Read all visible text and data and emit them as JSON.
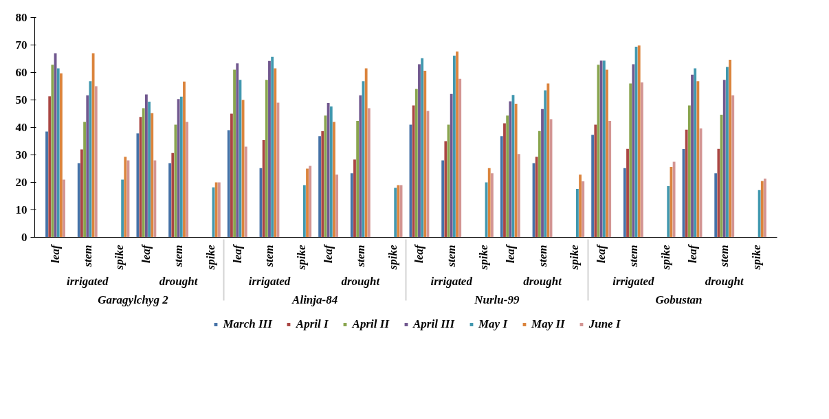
{
  "chart_data": {
    "type": "bar",
    "categories": [
      [
        "Garagylchyg 2",
        "irrigated",
        "leaf"
      ],
      [
        null,
        null,
        "stem"
      ],
      [
        null,
        null,
        "spike"
      ],
      [
        null,
        "drought",
        "leaf"
      ],
      [
        null,
        null,
        "stem"
      ],
      [
        null,
        null,
        "spike"
      ],
      [
        "Alinja-84",
        "irrigated",
        "leaf"
      ],
      [
        null,
        null,
        "stem"
      ],
      [
        null,
        null,
        "spike"
      ],
      [
        null,
        "drought",
        "leaf"
      ],
      [
        null,
        null,
        "stem"
      ],
      [
        null,
        null,
        "spike"
      ],
      [
        "Nurlu-99",
        "irrigated",
        "leaf"
      ],
      [
        null,
        null,
        "stem"
      ],
      [
        null,
        null,
        "spike"
      ],
      [
        null,
        "drought",
        "leaf"
      ],
      [
        null,
        null,
        "stem"
      ],
      [
        null,
        null,
        "spike"
      ],
      [
        "Gobustan",
        "irrigated",
        "leaf"
      ],
      [
        null,
        null,
        "stem"
      ],
      [
        null,
        null,
        "spike"
      ],
      [
        null,
        "drought",
        "leaf"
      ],
      [
        null,
        null,
        "stem"
      ],
      [
        null,
        null,
        "spike"
      ]
    ],
    "series": [
      {
        "name": "March III",
        "color": "#4572a7",
        "values": [
          38.5,
          27,
          null,
          37.8,
          27,
          null,
          39,
          25.2,
          null,
          36.8,
          23.3,
          null,
          41,
          28,
          null,
          36.8,
          27,
          null,
          37.3,
          25.2,
          null,
          32.1,
          23.3,
          null
        ]
      },
      {
        "name": "April I",
        "color": "#aa4643",
        "values": [
          51.3,
          32,
          null,
          43.8,
          30.7,
          null,
          45,
          35.4,
          null,
          38.6,
          28.3,
          null,
          48,
          35,
          null,
          41.5,
          29.3,
          null,
          41,
          32.2,
          null,
          39.2,
          32.2,
          null
        ]
      },
      {
        "name": "April II",
        "color": "#89a54e",
        "values": [
          62.8,
          42,
          null,
          47,
          41,
          null,
          61,
          57.3,
          null,
          44.3,
          42.4,
          null,
          54,
          41,
          null,
          44.3,
          38.7,
          null,
          62.8,
          56,
          null,
          48,
          44.6,
          null
        ]
      },
      {
        "name": "April III",
        "color": "#71588f",
        "values": [
          67,
          51.7,
          null,
          52,
          50.3,
          null,
          63.3,
          64.2,
          null,
          48.9,
          51.7,
          null,
          63,
          52.2,
          null,
          49.5,
          46.7,
          null,
          64.3,
          63,
          null,
          59.2,
          57.3,
          null
        ]
      },
      {
        "name": "May I",
        "color": "#4198af",
        "values": [
          61.5,
          56.8,
          21,
          49.4,
          51.2,
          18.2,
          57.3,
          65.7,
          19,
          47.6,
          56.8,
          18,
          65.2,
          66.1,
          20,
          51.8,
          53.5,
          17.6,
          64.3,
          69.4,
          18.6,
          61.5,
          62,
          17.2
        ]
      },
      {
        "name": "May II",
        "color": "#db843d",
        "values": [
          59.7,
          67,
          29.3,
          45.2,
          56.7,
          20,
          50,
          61.5,
          25,
          42,
          61.5,
          19,
          60.6,
          67.6,
          25.2,
          48.6,
          56,
          22.8,
          61,
          69.8,
          25.6,
          56.8,
          64.6,
          20.5
        ]
      },
      {
        "name": "June I",
        "color": "#d39593",
        "values": [
          21,
          55,
          28,
          28,
          42,
          20,
          33,
          49,
          26,
          22.8,
          47,
          19,
          46,
          57.7,
          23.3,
          30.3,
          43,
          20.4,
          42.4,
          56.4,
          27.5,
          39.6,
          51.7,
          21.4
        ]
      }
    ],
    "ylim": [
      0,
      80
    ],
    "yticks": [
      0,
      10,
      20,
      30,
      40,
      50,
      60,
      70,
      80
    ],
    "grid": false,
    "legend": "bottom"
  }
}
